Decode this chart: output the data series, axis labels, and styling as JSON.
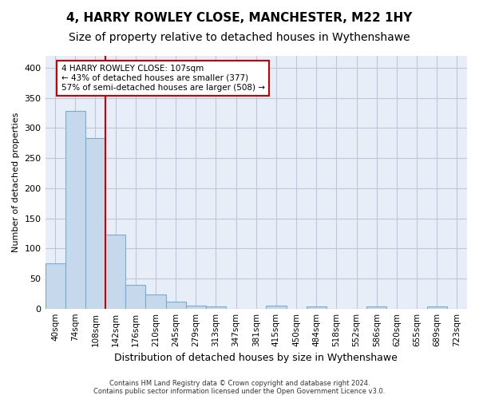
{
  "title": "4, HARRY ROWLEY CLOSE, MANCHESTER, M22 1HY",
  "subtitle": "Size of property relative to detached houses in Wythenshawe",
  "xlabel": "Distribution of detached houses by size in Wythenshawe",
  "ylabel": "Number of detached properties",
  "footer_line1": "Contains HM Land Registry data © Crown copyright and database right 2024.",
  "footer_line2": "Contains public sector information licensed under the Open Government Licence v3.0.",
  "bin_labels": [
    "40sqm",
    "74sqm",
    "108sqm",
    "142sqm",
    "176sqm",
    "210sqm",
    "245sqm",
    "279sqm",
    "313sqm",
    "347sqm",
    "381sqm",
    "415sqm",
    "450sqm",
    "484sqm",
    "518sqm",
    "552sqm",
    "586sqm",
    "620sqm",
    "655sqm",
    "689sqm",
    "723sqm"
  ],
  "bar_values": [
    75,
    328,
    284,
    123,
    39,
    24,
    12,
    5,
    4,
    0,
    0,
    5,
    0,
    4,
    0,
    0,
    3,
    0,
    0,
    3,
    0
  ],
  "bar_color": "#c5d8ec",
  "bar_edge_color": "#7aaed0",
  "red_line_x": 2,
  "annotation_text_line1": "4 HARRY ROWLEY CLOSE: 107sqm",
  "annotation_text_line2": "← 43% of detached houses are smaller (377)",
  "annotation_text_line3": "57% of semi-detached houses are larger (508) →",
  "annotation_box_color": "#ffffff",
  "annotation_border_color": "#cc0000",
  "ylim": [
    0,
    420
  ],
  "yticks": [
    0,
    50,
    100,
    150,
    200,
    250,
    300,
    350,
    400
  ],
  "grid_color": "#c0c8d8",
  "bg_color": "#e8eef8",
  "title_fontsize": 11,
  "subtitle_fontsize": 10
}
